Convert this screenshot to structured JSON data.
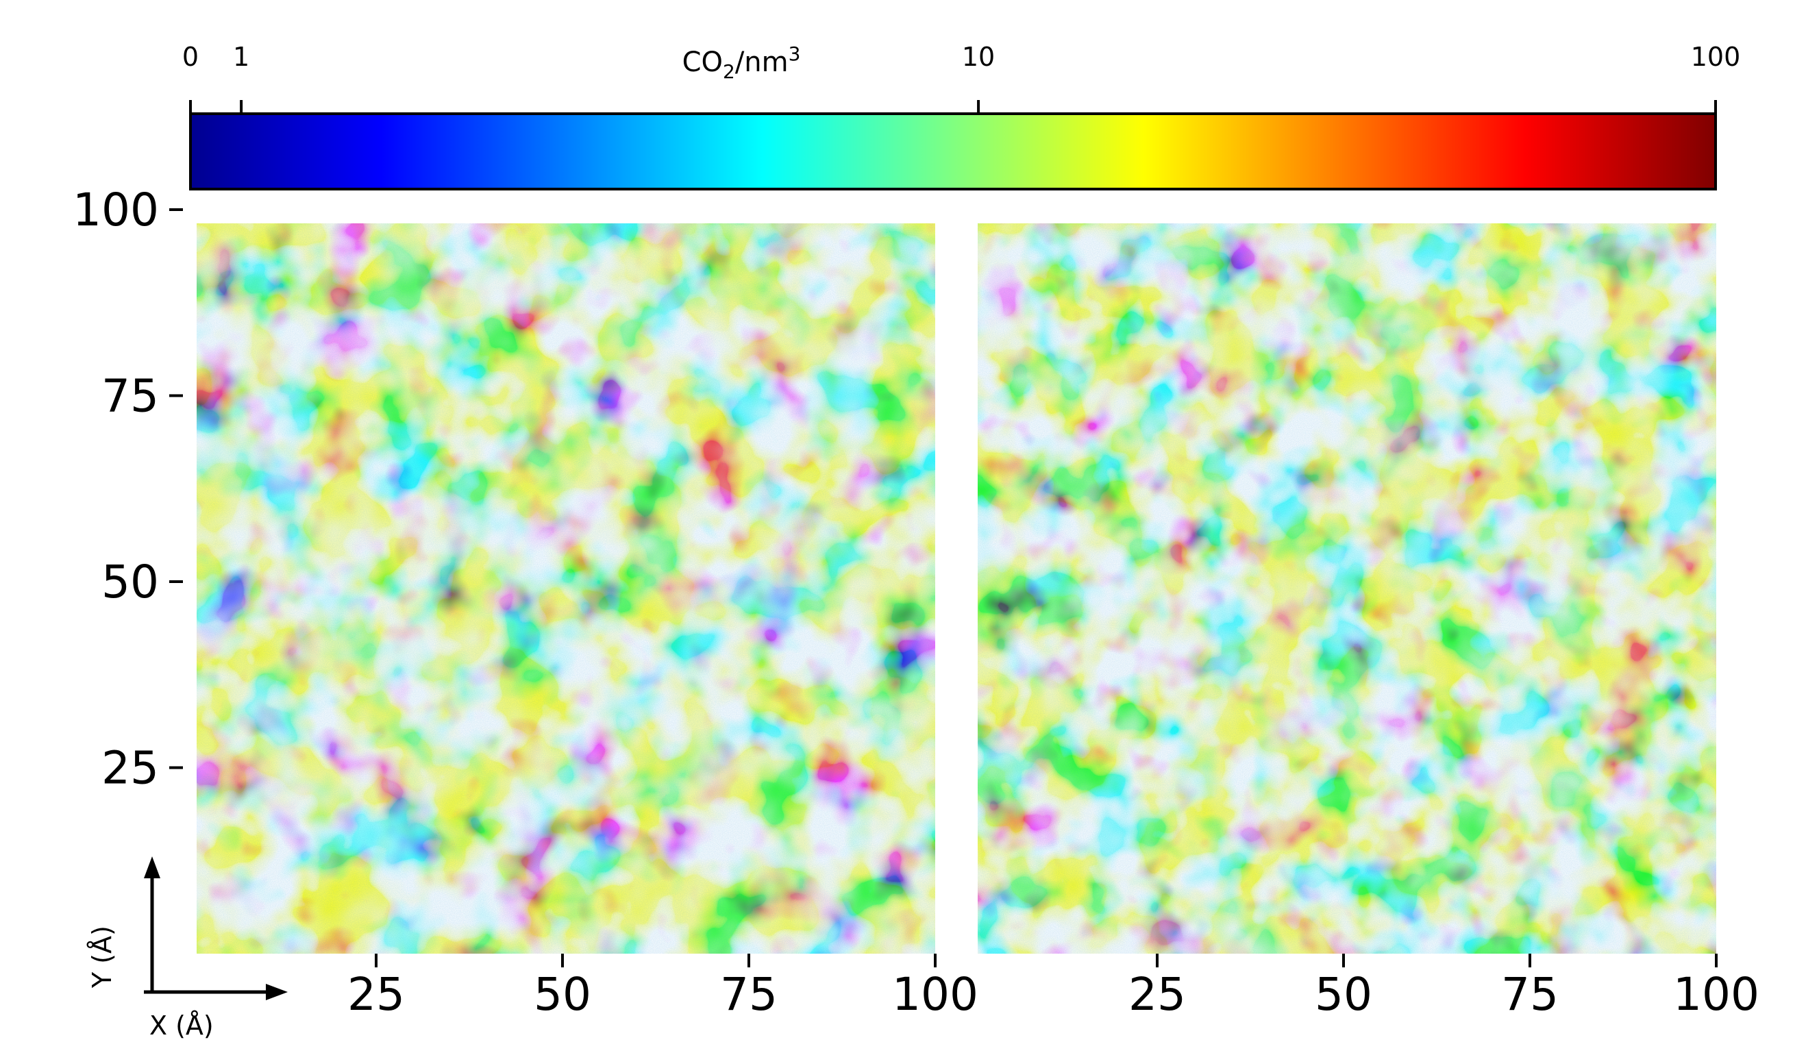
{
  "colorbar": {
    "label_main": "CO",
    "label_sub": "2",
    "label_mid": "/nm",
    "label_sup": "3",
    "ticks": [
      {
        "value": 0,
        "label": "0"
      },
      {
        "value": 1,
        "label": "1"
      },
      {
        "value": 10,
        "label": "10"
      },
      {
        "value": 100,
        "label": "100"
      }
    ],
    "range": [
      0,
      100
    ],
    "scale": "symlog",
    "colormap": "jet",
    "colormap_stops": [
      "#00008f",
      "#0000ff",
      "#0080ff",
      "#00ffff",
      "#80ff80",
      "#ffff00",
      "#ff8000",
      "#ff0000",
      "#800000"
    ]
  },
  "axis_indicator": {
    "x_label": "X (Å)",
    "y_label": "Y (Å)"
  },
  "chart_data": [
    {
      "type": "heatmap",
      "panel": "left",
      "xlim": [
        0,
        100
      ],
      "ylim": [
        0,
        100
      ],
      "xticks": [
        {
          "value": 25,
          "label": "25"
        },
        {
          "value": 50,
          "label": "50"
        },
        {
          "value": 75,
          "label": "75"
        },
        {
          "value": 100,
          "label": "100"
        }
      ],
      "yticks": [
        {
          "value": 25,
          "label": "25"
        },
        {
          "value": 50,
          "label": "50"
        },
        {
          "value": 75,
          "label": "75"
        },
        {
          "value": 100,
          "label": "100"
        }
      ],
      "xlabel": "",
      "ylabel": "",
      "title": ""
    },
    {
      "type": "heatmap",
      "panel": "right",
      "xlim": [
        0,
        100
      ],
      "ylim": [
        0,
        100
      ],
      "xticks": [
        {
          "value": 25,
          "label": "25"
        },
        {
          "value": 50,
          "label": "50"
        },
        {
          "value": 75,
          "label": "75"
        },
        {
          "value": 100,
          "label": "100"
        }
      ],
      "yticks": [],
      "xlabel": "",
      "ylabel": "",
      "title": ""
    }
  ]
}
